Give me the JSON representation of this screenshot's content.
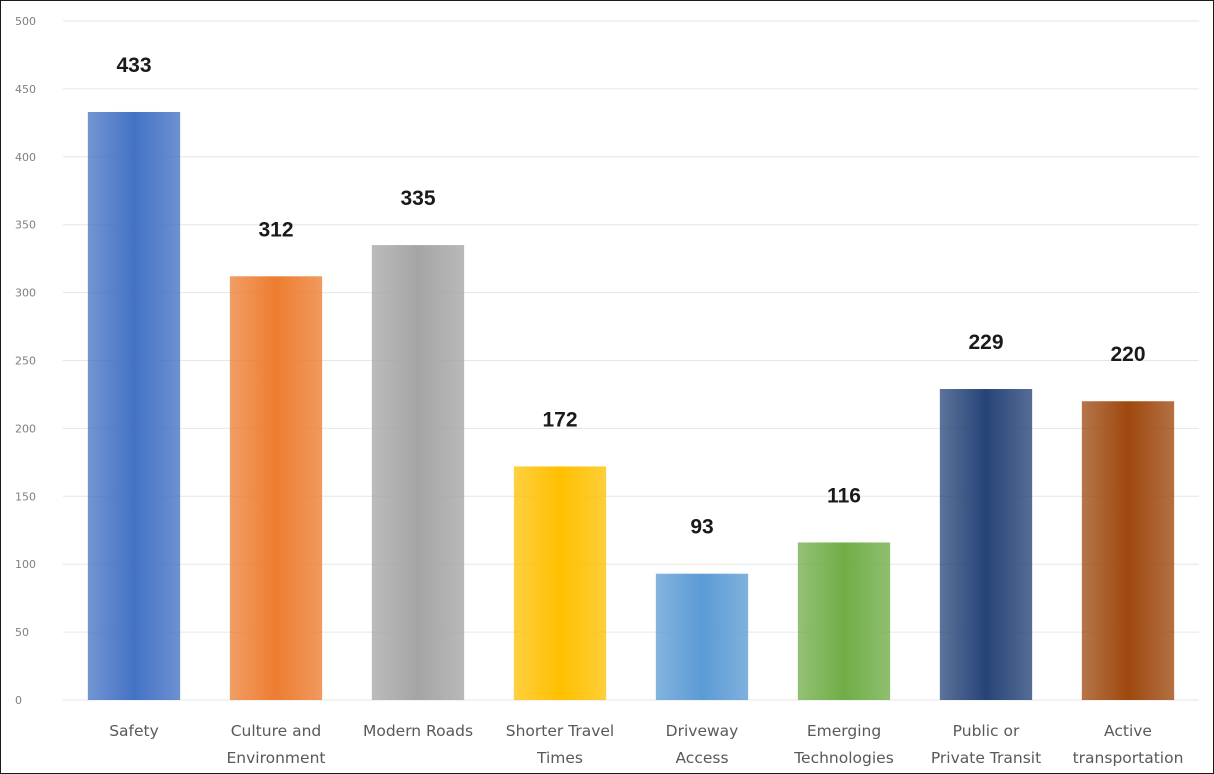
{
  "chart_data": {
    "type": "bar",
    "title": "",
    "xlabel": "",
    "ylabel": "",
    "ylim": [
      0,
      500
    ],
    "yticks": [
      0,
      50,
      100,
      150,
      200,
      250,
      300,
      350,
      400,
      450,
      500
    ],
    "grid": true,
    "legend": "none",
    "categories": [
      [
        "Safety"
      ],
      [
        "Culture and",
        "Environment"
      ],
      [
        "Modern Roads"
      ],
      [
        "Shorter Travel",
        "Times"
      ],
      [
        "Driveway",
        "Access"
      ],
      [
        "Emerging",
        "Technologies"
      ],
      [
        "Public or",
        "Private Transit"
      ],
      [
        "Active",
        "transportation"
      ]
    ],
    "values": [
      433,
      312,
      335,
      172,
      93,
      116,
      229,
      220
    ],
    "colors": [
      "#4472c4",
      "#ed7d31",
      "#a5a5a5",
      "#ffc000",
      "#5b9bd5",
      "#70ad47",
      "#264478",
      "#9e480e"
    ]
  }
}
